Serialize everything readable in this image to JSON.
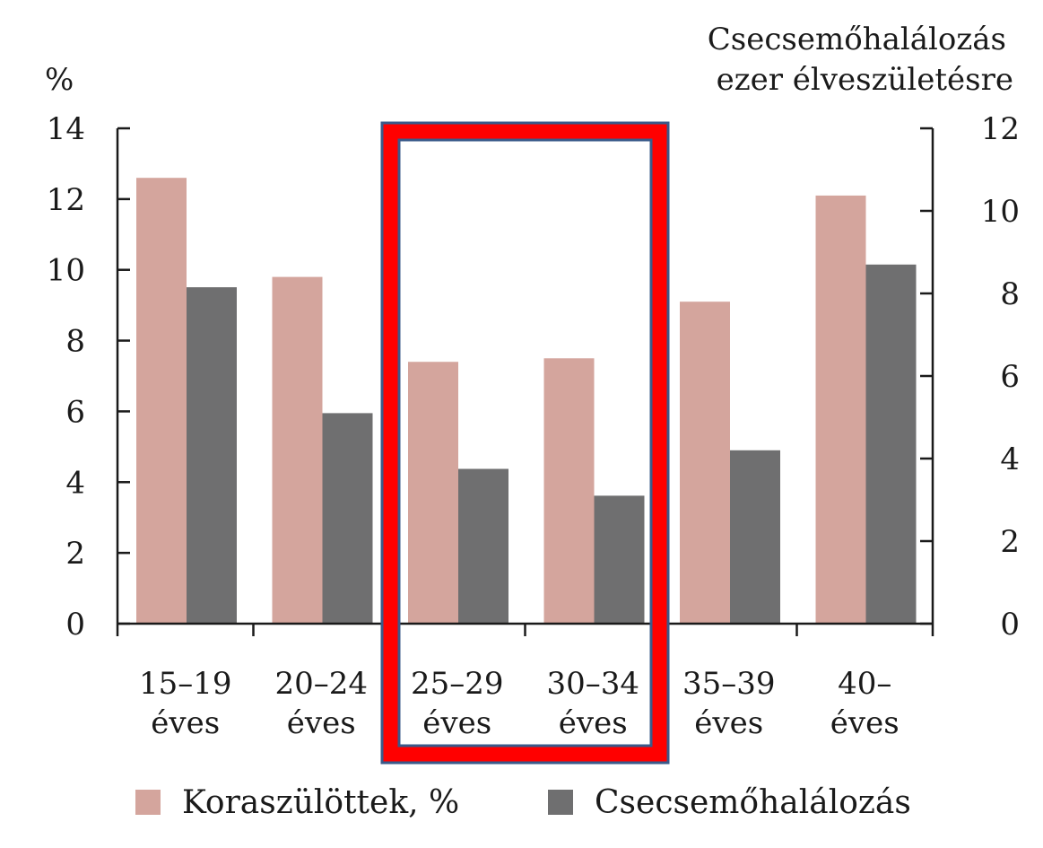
{
  "chart_data": {
    "type": "bar",
    "title": "",
    "left_axis": {
      "label": "%",
      "ylim": [
        0,
        14
      ],
      "ticks": [
        0,
        2,
        4,
        6,
        8,
        10,
        12,
        14
      ]
    },
    "right_axis": {
      "label_line1": "Csecsemőhalálozás",
      "label_line2": "ezer élveszületésre",
      "ylim": [
        0,
        12
      ],
      "ticks": [
        0,
        2,
        4,
        6,
        8,
        10,
        12
      ]
    },
    "categories": [
      {
        "line1": "15–19",
        "line2": "éves"
      },
      {
        "line1": "20–24",
        "line2": "éves"
      },
      {
        "line1": "25–29",
        "line2": "éves"
      },
      {
        "line1": "30–34",
        "line2": "éves"
      },
      {
        "line1": "35–39",
        "line2": "éves"
      },
      {
        "line1": "40–",
        "line2": "éves"
      }
    ],
    "series": [
      {
        "name": "Koraszülöttek, %",
        "axis": "left",
        "color": "#d4a59d",
        "values": [
          12.6,
          9.8,
          7.4,
          7.5,
          9.1,
          12.1
        ]
      },
      {
        "name": "Csecsemőhalálozás",
        "axis": "right",
        "color": "#6f6f70",
        "values": [
          8.15,
          5.1,
          3.75,
          3.1,
          4.2,
          8.7
        ]
      }
    ],
    "highlight": {
      "categories": [
        "25–29",
        "30–34"
      ],
      "color": "#ff0000",
      "border": "#3a5a8a"
    },
    "legend": "bottom"
  }
}
